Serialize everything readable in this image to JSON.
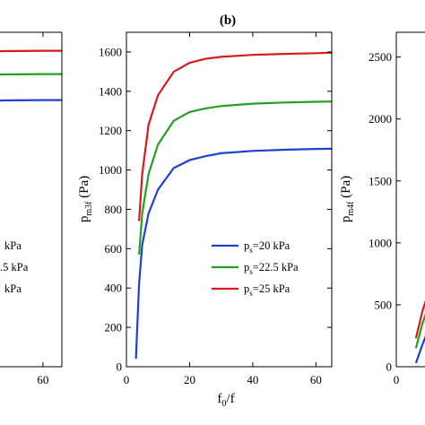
{
  "panel_title": "(b)",
  "colors": {
    "blue": "#2040d0",
    "green": "#22a022",
    "red": "#d41c1c"
  },
  "chart_data": [
    {
      "id": "left",
      "type": "line",
      "xlim": [
        0,
        65
      ],
      "x_ticks": [
        60
      ],
      "y_ticks": [],
      "legend": {
        "placement": "center-left",
        "entries": [
          "kPa",
          ".5 kPa",
          "kPa"
        ]
      },
      "series": [
        {
          "color": "blue",
          "x": [
            0,
            10,
            20,
            30,
            40,
            50,
            60,
            65
          ],
          "rel": [
            1.0,
            1.004,
            1.008,
            1.011,
            1.013,
            1.015,
            1.016,
            1.016
          ]
        },
        {
          "color": "green",
          "x": [
            0,
            10,
            20,
            30,
            40,
            50,
            60,
            65
          ],
          "rel": [
            1.0,
            1.004,
            1.008,
            1.011,
            1.013,
            1.015,
            1.016,
            1.016
          ]
        },
        {
          "color": "red",
          "x": [
            0,
            10,
            20,
            30,
            40,
            50,
            60,
            65
          ],
          "rel": [
            1.0,
            1.004,
            1.008,
            1.011,
            1.013,
            1.015,
            1.016,
            1.016
          ]
        }
      ]
    },
    {
      "id": "middle",
      "type": "line",
      "xlim": [
        0,
        65
      ],
      "ylim": [
        0,
        1700
      ],
      "x_ticks": [
        0,
        20,
        40,
        60
      ],
      "y_ticks": [
        0,
        200,
        400,
        600,
        800,
        1000,
        1200,
        1400,
        1600
      ],
      "xlabel": {
        "main": "f",
        "sub": "0",
        "tail": "/f"
      },
      "ylabel": {
        "main": "p",
        "sub": "m3f",
        "tail": " (Pa)"
      },
      "legend": {
        "placement": "lower-right",
        "entries": [
          {
            "color": "blue",
            "main": "p",
            "sub": "s",
            "tail": "=20 kPa"
          },
          {
            "color": "green",
            "main": "p",
            "sub": "s",
            "tail": "=22.5 kPa"
          },
          {
            "color": "red",
            "main": "p",
            "sub": "s",
            "tail": "=25 kPa"
          }
        ]
      },
      "series": [
        {
          "name": "ps=20 kPa",
          "color": "blue",
          "x": [
            3,
            4,
            5,
            7,
            10,
            15,
            20,
            25,
            30,
            40,
            50,
            60,
            65
          ],
          "y": [
            40,
            420,
            620,
            780,
            900,
            1010,
            1050,
            1070,
            1085,
            1097,
            1103,
            1107,
            1108
          ]
        },
        {
          "name": "ps=22.5 kPa",
          "color": "green",
          "x": [
            4,
            5,
            7,
            10,
            15,
            20,
            25,
            30,
            40,
            50,
            60,
            65
          ],
          "y": [
            570,
            780,
            980,
            1130,
            1250,
            1295,
            1313,
            1325,
            1337,
            1343,
            1347,
            1348
          ]
        },
        {
          "name": "ps=25 kPa",
          "color": "red",
          "x": [
            4,
            5,
            7,
            10,
            15,
            20,
            25,
            30,
            40,
            50,
            60,
            65
          ],
          "y": [
            740,
            980,
            1230,
            1380,
            1500,
            1545,
            1565,
            1575,
            1585,
            1590,
            1594,
            1596
          ]
        }
      ]
    },
    {
      "id": "right",
      "type": "line",
      "xlim": [
        0,
        10
      ],
      "ylim": [
        0,
        2700
      ],
      "x_ticks": [
        0
      ],
      "y_ticks": [
        0,
        500,
        1000,
        1500,
        2000,
        2500
      ],
      "ylabel": {
        "main": "p",
        "sub": "m4f",
        "tail": " (Pa)"
      },
      "series": [
        {
          "color": "blue",
          "x": [
            3,
            4,
            6,
            8,
            10
          ],
          "y": [
            30,
            180,
            450,
            700,
            950
          ]
        },
        {
          "color": "green",
          "x": [
            3,
            4,
            6,
            8,
            10
          ],
          "y": [
            150,
            350,
            650,
            900,
            1150
          ]
        },
        {
          "color": "red",
          "x": [
            3,
            4,
            6,
            8,
            10
          ],
          "y": [
            230,
            450,
            780,
            1050,
            1300
          ]
        }
      ]
    }
  ]
}
